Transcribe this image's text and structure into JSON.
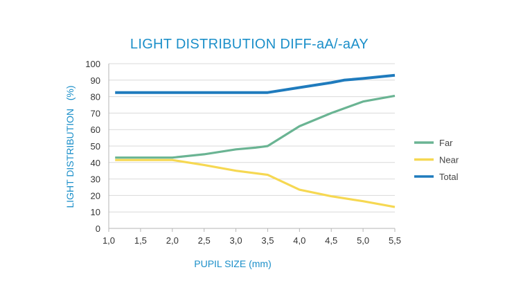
{
  "chart_data": {
    "type": "line",
    "title": "LIGHT DISTRIBUTION DIFF-aA/-aAY",
    "xlabel": "PUPIL SIZE (mm)",
    "ylabel": "LIGHT DISTRIBUTION   (%)",
    "xlim": [
      1.0,
      5.5
    ],
    "ylim": [
      0,
      100
    ],
    "x_ticks": [
      "1,0",
      "1,5",
      "2,0",
      "2,5",
      "3,0",
      "3,5",
      "4,0",
      "4,5",
      "5,0",
      "5,5"
    ],
    "y_ticks": [
      "0",
      "10",
      "20",
      "30",
      "40",
      "50",
      "60",
      "70",
      "80",
      "90",
      "100"
    ],
    "grid": "horizontal",
    "legend_position": "right",
    "series": [
      {
        "name": "Far",
        "color": "#6ab493",
        "points": [
          [
            1.1,
            43
          ],
          [
            2.0,
            43
          ],
          [
            2.5,
            45
          ],
          [
            3.0,
            48
          ],
          [
            3.3,
            49
          ],
          [
            3.5,
            50
          ],
          [
            4.0,
            62
          ],
          [
            4.5,
            70
          ],
          [
            5.0,
            77
          ],
          [
            5.5,
            80.5
          ]
        ]
      },
      {
        "name": "Near",
        "color": "#f6d852",
        "points": [
          [
            1.1,
            41.5
          ],
          [
            2.0,
            41.5
          ],
          [
            2.5,
            38.5
          ],
          [
            3.0,
            35
          ],
          [
            3.5,
            32.5
          ],
          [
            4.0,
            23.5
          ],
          [
            4.5,
            19.5
          ],
          [
            5.0,
            16.5
          ],
          [
            5.5,
            13
          ]
        ]
      },
      {
        "name": "Total",
        "color": "#1f7bbd",
        "points": [
          [
            1.1,
            82.5
          ],
          [
            2.0,
            82.5
          ],
          [
            3.0,
            82.5
          ],
          [
            3.5,
            82.5
          ],
          [
            4.0,
            85.5
          ],
          [
            4.5,
            88.5
          ],
          [
            4.7,
            90
          ],
          [
            5.0,
            91
          ],
          [
            5.5,
            93
          ]
        ]
      }
    ]
  }
}
